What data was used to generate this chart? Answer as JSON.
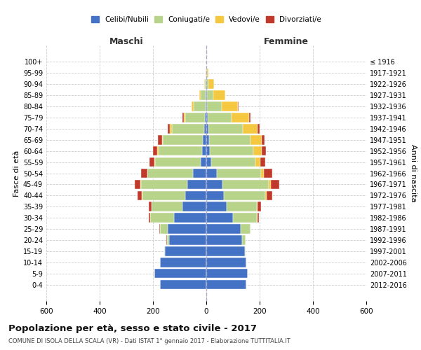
{
  "age_groups": [
    "0-4",
    "5-9",
    "10-14",
    "15-19",
    "20-24",
    "25-29",
    "30-34",
    "35-39",
    "40-44",
    "45-49",
    "50-54",
    "55-59",
    "60-64",
    "65-69",
    "70-74",
    "75-79",
    "80-84",
    "85-89",
    "90-94",
    "95-99",
    "100+"
  ],
  "birth_years": [
    "2012-2016",
    "2007-2011",
    "2002-2006",
    "1997-2001",
    "1992-1996",
    "1987-1991",
    "1982-1986",
    "1977-1981",
    "1972-1976",
    "1967-1971",
    "1962-1966",
    "1957-1961",
    "1952-1956",
    "1947-1951",
    "1942-1946",
    "1937-1941",
    "1932-1936",
    "1927-1931",
    "1922-1926",
    "1917-1921",
    "≤ 1916"
  ],
  "males": {
    "celibe": [
      175,
      195,
      175,
      155,
      140,
      145,
      120,
      90,
      80,
      70,
      50,
      22,
      15,
      12,
      8,
      5,
      3,
      2,
      1,
      1,
      0
    ],
    "coniugato": [
      0,
      0,
      0,
      2,
      8,
      30,
      90,
      115,
      160,
      175,
      170,
      170,
      165,
      150,
      120,
      75,
      45,
      20,
      5,
      2,
      0
    ],
    "vedovo": [
      0,
      0,
      0,
      0,
      0,
      0,
      0,
      0,
      1,
      2,
      2,
      2,
      3,
      5,
      8,
      5,
      8,
      5,
      2,
      0,
      0
    ],
    "divorziato": [
      0,
      0,
      0,
      0,
      2,
      2,
      5,
      10,
      18,
      22,
      22,
      18,
      18,
      15,
      8,
      5,
      0,
      0,
      0,
      0,
      0
    ]
  },
  "females": {
    "nubile": [
      150,
      155,
      150,
      145,
      135,
      130,
      100,
      75,
      65,
      60,
      40,
      18,
      12,
      10,
      8,
      5,
      3,
      2,
      1,
      1,
      0
    ],
    "coniugata": [
      0,
      0,
      0,
      3,
      12,
      35,
      90,
      115,
      155,
      175,
      165,
      165,
      165,
      155,
      130,
      90,
      55,
      25,
      8,
      2,
      0
    ],
    "vedova": [
      0,
      0,
      0,
      0,
      0,
      0,
      2,
      3,
      5,
      8,
      12,
      20,
      30,
      42,
      55,
      65,
      60,
      45,
      20,
      5,
      1
    ],
    "divorziata": [
      0,
      0,
      0,
      0,
      1,
      2,
      5,
      12,
      22,
      30,
      30,
      18,
      18,
      12,
      8,
      5,
      2,
      0,
      0,
      0,
      0
    ]
  },
  "colors": {
    "celibe": "#4472C4",
    "coniugato": "#B8D48A",
    "vedovo": "#F5C842",
    "divorziato": "#C0392B"
  },
  "title": "Popolazione per età, sesso e stato civile - 2017",
  "subtitle": "COMUNE DI ISOLA DELLA SCALA (VR) - Dati ISTAT 1° gennaio 2017 - Elaborazione TUTTITALIA.IT",
  "xlabel_left": "Maschi",
  "xlabel_right": "Femmine",
  "ylabel_left": "Fasce di età",
  "ylabel_right": "Anni di nascita",
  "xlim": 600,
  "bg_color": "#ffffff",
  "grid_color": "#cccccc",
  "bar_height": 0.85
}
